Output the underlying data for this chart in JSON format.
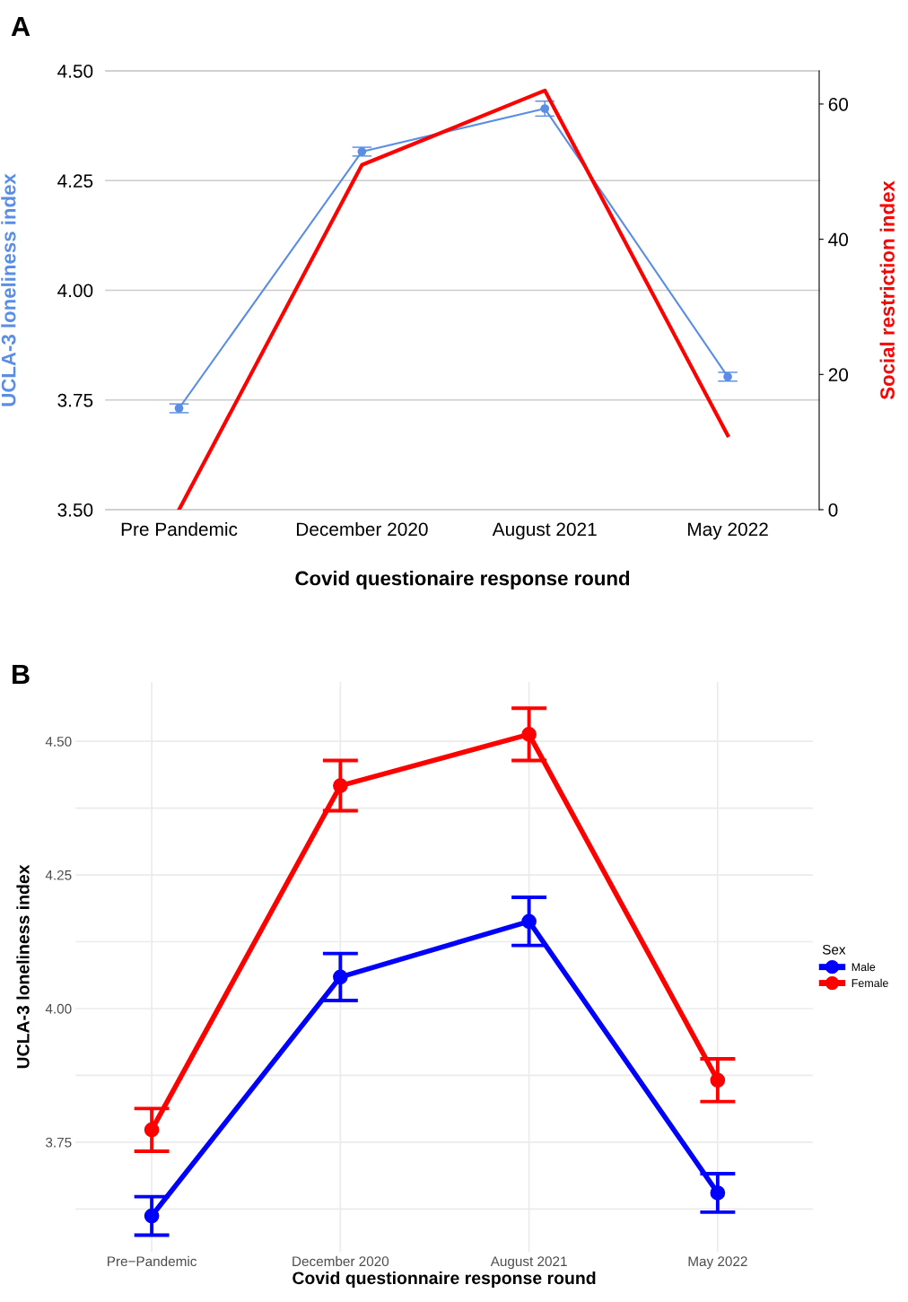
{
  "chart_data": [
    {
      "type": "line",
      "annotations": [
        "A"
      ],
      "xlabel": "Covid questionaire response round",
      "ylabel": "UCLA-3 loneliness index",
      "y2label": "Social restriction index",
      "categories": [
        "Pre Pandemic",
        "December 2020",
        "August 2021",
        "May 2022"
      ],
      "series": [
        {
          "color": "#5a8ee6",
          "values": [
            3.731,
            4.316,
            4.414,
            3.803
          ],
          "errors": [
            0.01,
            0.01,
            0.017,
            0.01
          ],
          "marker": "circle"
        },
        {
          "color": "#ff0000",
          "values": [
            0,
            51,
            62,
            11
          ],
          "axis": "y2",
          "marker": "none"
        }
      ],
      "ylim": [
        3.5,
        4.5
      ],
      "yticks": [
        {
          "value": 3.5,
          "label": "3.50"
        },
        {
          "value": 3.75,
          "label": "3.75"
        },
        {
          "value": 4.0,
          "label": "4.00"
        },
        {
          "value": 4.25,
          "label": "4.25"
        },
        {
          "value": 4.5,
          "label": "4.50"
        }
      ],
      "y2lim": [
        0,
        64.9
      ],
      "y2ticks": [
        0,
        20,
        40,
        60
      ],
      "grid": "y",
      "legend": false
    },
    {
      "type": "line",
      "annotations": [
        "B"
      ],
      "xlabel": "Covid questionnaire response round",
      "ylabel": "UCLA-3 loneliness index",
      "legend_title": "Sex",
      "categories": [
        "Pre−Pandemic",
        "December 2020",
        "August 2021",
        "May 2022"
      ],
      "series": [
        {
          "name": "Male",
          "color": "#0000ff",
          "values": [
            3.612,
            4.059,
            4.163,
            3.655
          ],
          "errors": [
            0.036,
            0.044,
            0.045,
            0.036
          ],
          "marker": "circle"
        },
        {
          "name": "Female",
          "color": "#ff0000",
          "values": [
            3.773,
            4.417,
            4.513,
            3.866
          ],
          "errors": [
            0.04,
            0.047,
            0.049,
            0.04
          ],
          "marker": "circle"
        }
      ],
      "ylim": [
        3.545,
        4.611
      ],
      "yticks": [
        {
          "value": 3.625,
          "label": null
        },
        {
          "value": 3.75,
          "label": "3.75"
        },
        {
          "value": 3.875,
          "label": null
        },
        {
          "value": 4.0,
          "label": "4.00"
        },
        {
          "value": 4.125,
          "label": null
        },
        {
          "value": 4.25,
          "label": "4.25"
        },
        {
          "value": 4.375,
          "label": null
        },
        {
          "value": 4.5,
          "label": "4.50"
        }
      ],
      "grid": true,
      "legend": "right"
    }
  ]
}
